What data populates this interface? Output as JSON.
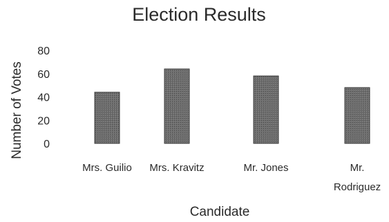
{
  "chart_data": {
    "type": "bar",
    "title": "Election Results",
    "xlabel": "Candidate",
    "ylabel": "Number of Votes",
    "categories": [
      "Mrs. Guilio",
      "Mrs. Kravitz",
      "Mr. Jones",
      "Mr. Rodriguez"
    ],
    "category_lines": [
      [
        "Mrs. Guilio"
      ],
      [
        "Mrs. Kravitz"
      ],
      [
        "Mr. Jones"
      ],
      [
        "Mr.",
        "Rodriguez"
      ]
    ],
    "values": [
      44,
      64,
      58,
      48
    ],
    "ylim": [
      0,
      80
    ],
    "yticks": [
      "0",
      "20",
      "40",
      "60",
      "80"
    ],
    "grid": false,
    "legend": "none",
    "bar_color": "#6e6e6e"
  }
}
